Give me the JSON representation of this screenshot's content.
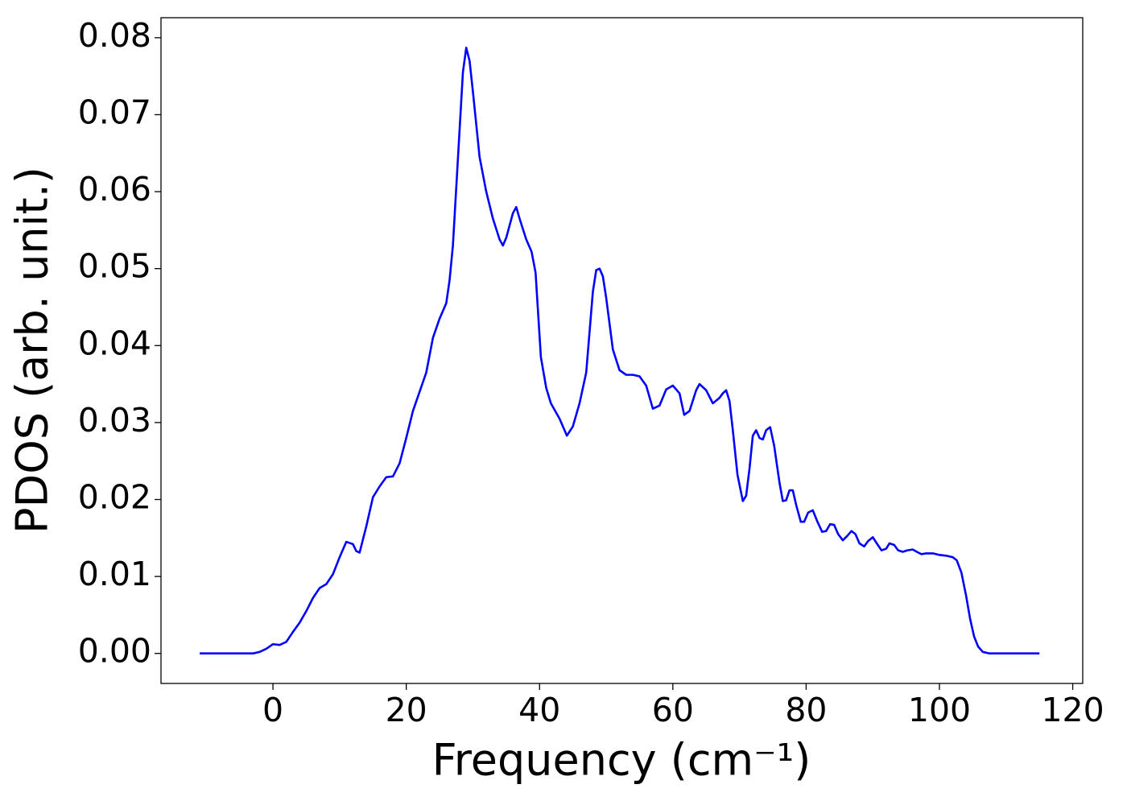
{
  "chart_data": {
    "type": "line",
    "xlabel": "Frequency (cm⁻¹)",
    "ylabel": "PDOS (arb. unit.)",
    "color": "#0000ff",
    "xlim": [
      -16.8,
      121.5
    ],
    "ylim": [
      -0.0039,
      0.0826
    ],
    "xticks": [
      0,
      20,
      40,
      60,
      80,
      100,
      120
    ],
    "yticks": [
      {
        "value": 0,
        "label": "0.00"
      },
      {
        "value": 0.01,
        "label": "0.01"
      },
      {
        "value": 0.02,
        "label": "0.02"
      },
      {
        "value": 0.03,
        "label": "0.03"
      },
      {
        "value": 0.04,
        "label": "0.04"
      },
      {
        "value": 0.05,
        "label": "0.05"
      },
      {
        "value": 0.06,
        "label": "0.06"
      },
      {
        "value": 0.07,
        "label": "0.07"
      },
      {
        "value": 0.08,
        "label": "0.08"
      }
    ],
    "x": [
      -11,
      -3,
      -2,
      -1,
      0,
      1,
      2,
      3,
      4,
      5,
      6,
      7,
      8,
      9,
      10,
      11,
      12,
      12.5,
      13,
      14,
      15,
      16,
      17,
      18,
      19,
      20,
      21,
      22,
      23,
      24,
      25,
      26,
      26.5,
      27,
      28,
      28.5,
      29,
      29.5,
      30,
      31,
      32,
      33,
      34,
      34.5,
      35,
      36,
      36.5,
      37,
      38,
      38.8,
      39.4,
      40.2,
      41,
      41.7,
      43,
      44.1,
      45,
      46,
      47,
      48,
      48.5,
      49,
      49.5,
      50,
      51,
      52,
      53,
      54,
      55,
      56,
      57,
      58,
      59,
      60,
      61,
      61.7,
      62.5,
      63.5,
      64,
      65,
      66,
      67,
      67.5,
      68,
      68.5,
      69,
      69.7,
      70.5,
      71,
      71.5,
      72,
      72.5,
      73,
      73.5,
      74,
      74.6,
      75.2,
      76,
      76.5,
      77,
      77.5,
      78,
      78.5,
      79.2,
      79.7,
      80.3,
      81,
      81.7,
      82.4,
      83,
      83.6,
      84.2,
      84.8,
      85.5,
      86.2,
      86.8,
      87.4,
      88,
      88.7,
      89.3,
      90,
      90.6,
      91.3,
      92,
      92.5,
      93.2,
      93.8,
      94.5,
      95.2,
      96,
      96.6,
      97.3,
      98,
      99,
      100,
      101,
      102,
      102.6,
      103.3,
      104,
      104.6,
      105.2,
      105.8,
      106.5,
      107.5,
      110,
      115
    ],
    "values": [
      0,
      0,
      0.0002,
      0.0006,
      0.0012,
      0.0011,
      0.0015,
      0.0028,
      0.004,
      0.0055,
      0.0072,
      0.0085,
      0.009,
      0.0103,
      0.0125,
      0.0145,
      0.0142,
      0.0133,
      0.0131,
      0.0165,
      0.0203,
      0.0217,
      0.0229,
      0.023,
      0.0247,
      0.028,
      0.0315,
      0.034,
      0.0365,
      0.041,
      0.0435,
      0.0455,
      0.0485,
      0.053,
      0.068,
      0.0755,
      0.0787,
      0.077,
      0.073,
      0.0645,
      0.06,
      0.0565,
      0.0538,
      0.053,
      0.054,
      0.0572,
      0.058,
      0.0565,
      0.0538,
      0.0522,
      0.0495,
      0.0385,
      0.0345,
      0.0325,
      0.0305,
      0.0283,
      0.0295,
      0.0325,
      0.0365,
      0.047,
      0.0498,
      0.05,
      0.049,
      0.0462,
      0.0395,
      0.0368,
      0.0362,
      0.0362,
      0.036,
      0.0348,
      0.0318,
      0.0322,
      0.0343,
      0.0348,
      0.0338,
      0.031,
      0.0315,
      0.0342,
      0.035,
      0.0342,
      0.0325,
      0.0332,
      0.0338,
      0.0342,
      0.0328,
      0.029,
      0.0232,
      0.0198,
      0.0205,
      0.024,
      0.0283,
      0.029,
      0.028,
      0.0278,
      0.029,
      0.0294,
      0.027,
      0.0222,
      0.0198,
      0.0199,
      0.0212,
      0.0212,
      0.0193,
      0.0171,
      0.0171,
      0.0183,
      0.0186,
      0.0171,
      0.0158,
      0.0159,
      0.0168,
      0.0167,
      0.0155,
      0.0147,
      0.0153,
      0.0159,
      0.0155,
      0.0143,
      0.0139,
      0.0146,
      0.0151,
      0.0143,
      0.0134,
      0.0136,
      0.0143,
      0.0141,
      0.0134,
      0.0132,
      0.0134,
      0.0135,
      0.0132,
      0.0129,
      0.013,
      0.013,
      0.0128,
      0.0127,
      0.0125,
      0.0121,
      0.0105,
      0.0075,
      0.0045,
      0.0022,
      0.0009,
      0.0002,
      0,
      0,
      0
    ]
  }
}
